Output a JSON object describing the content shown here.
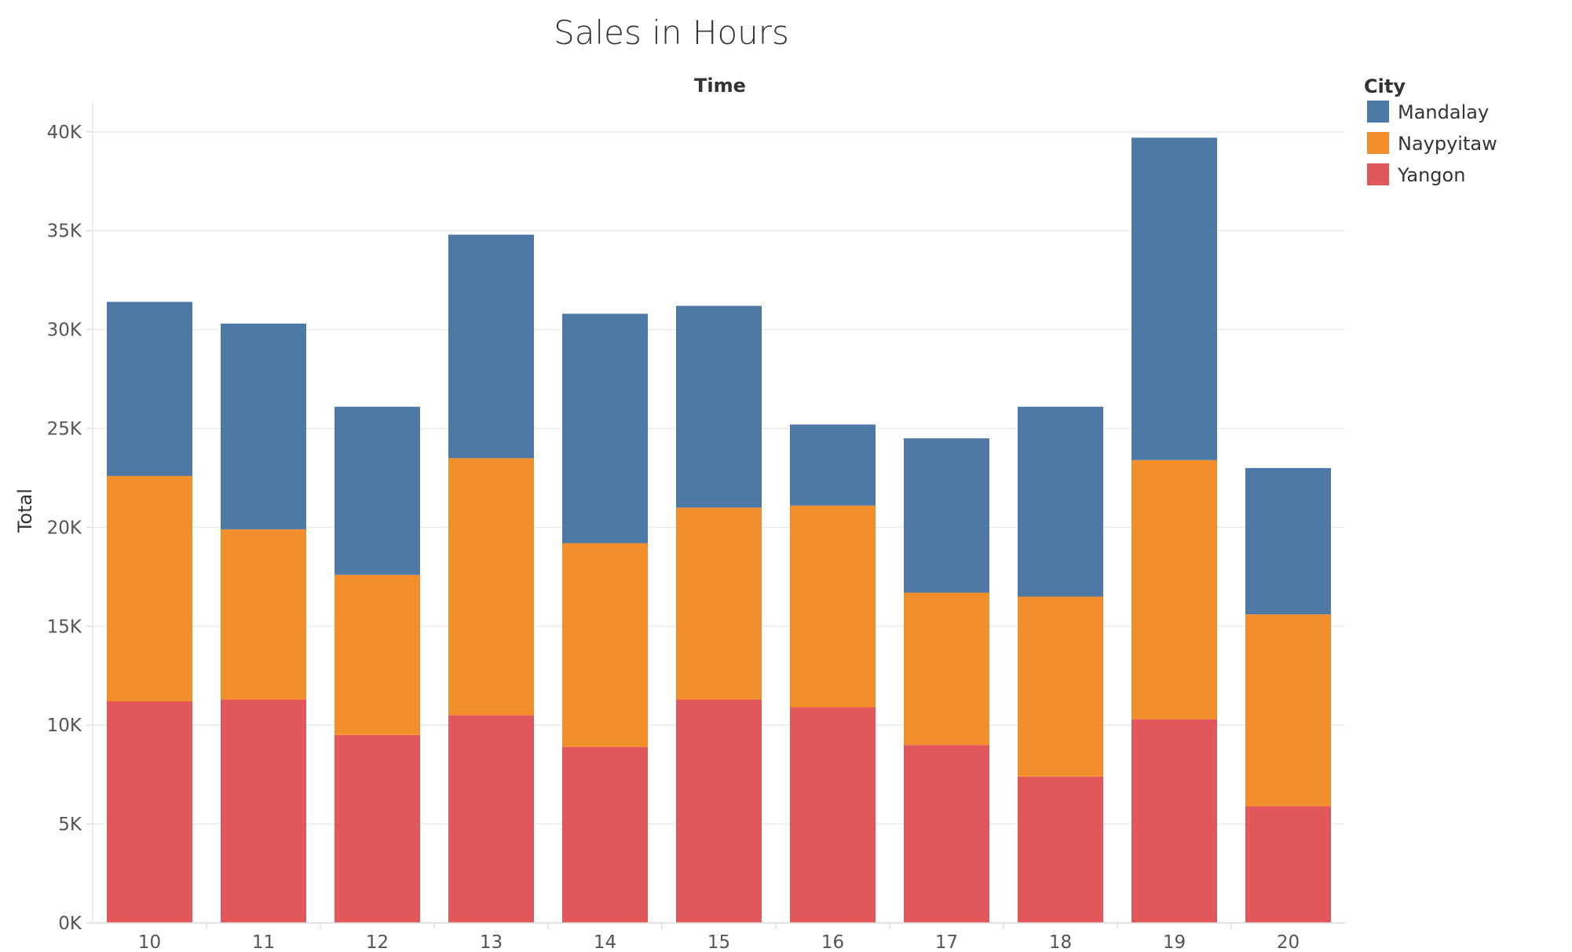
{
  "chart_data": {
    "type": "bar",
    "stacked": true,
    "title": "Sales in Hours",
    "xlabel": "Time",
    "ylabel": "Total",
    "categories": [
      "10",
      "11",
      "12",
      "13",
      "14",
      "15",
      "16",
      "17",
      "18",
      "19",
      "20"
    ],
    "series": [
      {
        "name": "Yangon",
        "color": "#e1575a",
        "values": [
          11200,
          11300,
          9500,
          10500,
          8900,
          11300,
          10900,
          9000,
          7400,
          10300,
          5900
        ]
      },
      {
        "name": "Naypyitaw",
        "color": "#f28e2b",
        "values": [
          11400,
          8600,
          8100,
          13000,
          10300,
          9700,
          10200,
          7700,
          9100,
          13100,
          9700
        ]
      },
      {
        "name": "Mandalay",
        "color": "#4e79a7",
        "values": [
          8800,
          10400,
          8500,
          11300,
          11600,
          10200,
          4100,
          7800,
          9600,
          16300,
          7400
        ]
      }
    ],
    "yticks": [
      "0K",
      "5K",
      "10K",
      "15K",
      "20K",
      "25K",
      "30K",
      "35K",
      "40K"
    ],
    "ytick_values": [
      0,
      5000,
      10000,
      15000,
      20000,
      25000,
      30000,
      35000,
      40000
    ],
    "ylim": [
      0,
      41500
    ],
    "grid": true,
    "legend": {
      "title": "City",
      "position": "top-right",
      "items": [
        {
          "label": "Mandalay",
          "color": "#4e79a7"
        },
        {
          "label": "Naypyitaw",
          "color": "#f28e2b"
        },
        {
          "label": "Yangon",
          "color": "#e1575a"
        }
      ]
    }
  }
}
